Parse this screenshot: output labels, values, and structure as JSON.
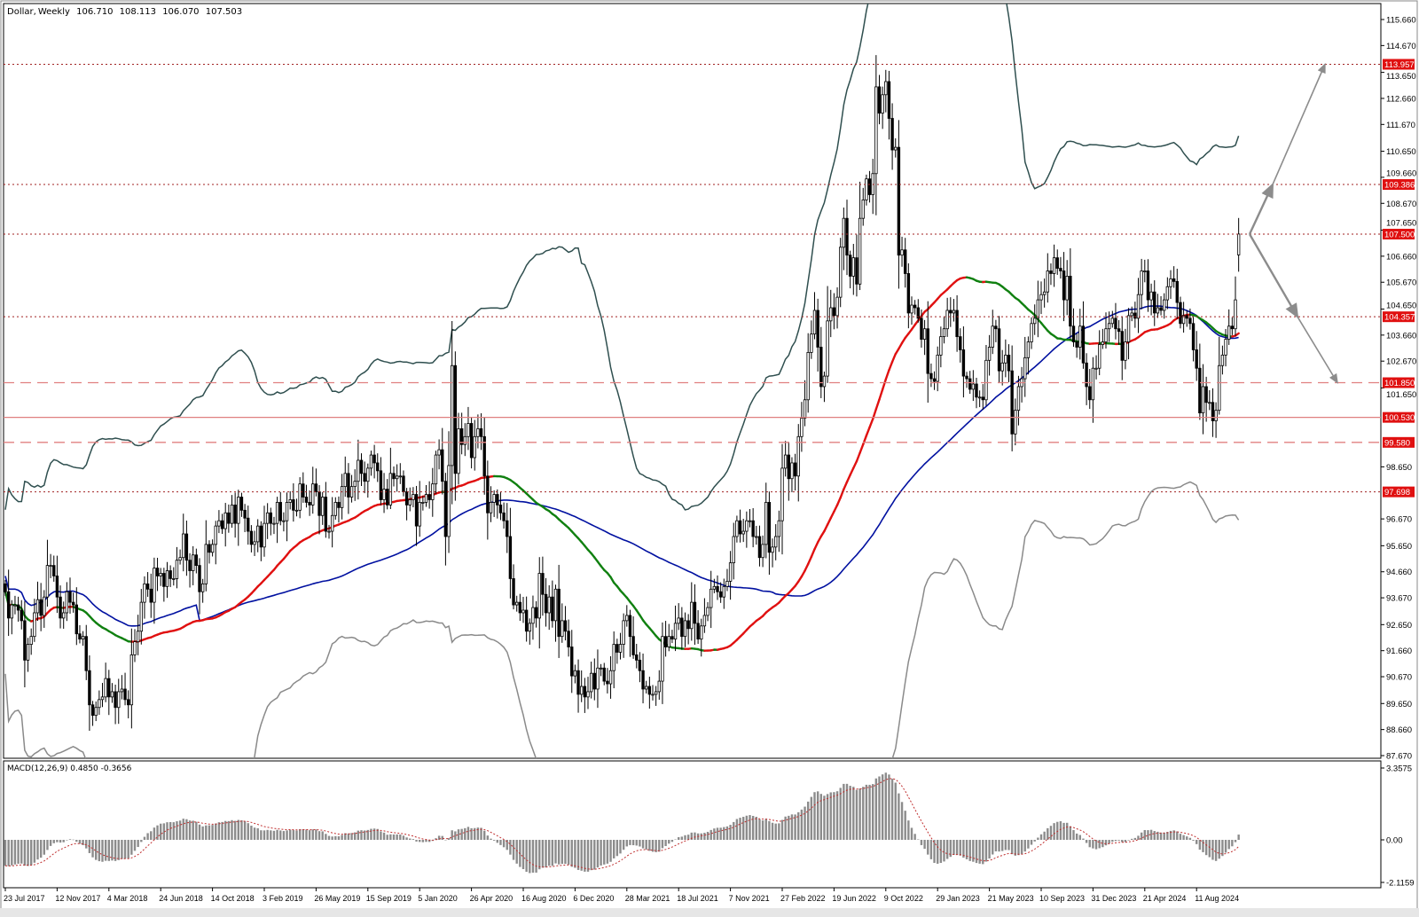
{
  "header": {
    "symbol": "Dollar",
    "timeframe": "Weekly",
    "open": "106.710",
    "high": "108.113",
    "low": "106.070",
    "close": "107.503"
  },
  "macd_label": {
    "name": "MACD(12,26,9)",
    "main": "0.4850",
    "signal": "-0.3656"
  },
  "colors": {
    "bull_body": "#ffffff",
    "bear_body": "#000000",
    "ma_rising": "#e01010",
    "ma_falling": "#108010",
    "ma_slow": "#0010a0",
    "band_upper": "#2f4f4f",
    "band_lower": "#8a8a8a",
    "level_label": "#e01010",
    "macd_hist": "#8c8c8c",
    "macd_signal": "#c03030",
    "arrows": "#8c8c8c"
  },
  "price_axis": [
    "115.660",
    "114.670",
    "113.650",
    "112.660",
    "111.670",
    "110.650",
    "109.660",
    "108.670",
    "107.650",
    "106.660",
    "105.670",
    "104.650",
    "103.660",
    "102.670",
    "101.650",
    "98.650",
    "96.670",
    "95.650",
    "94.660",
    "93.670",
    "92.650",
    "91.660",
    "90.670",
    "89.650",
    "88.660",
    "87.670"
  ],
  "macd_axis": [
    "3.3575",
    "0.00",
    "-2.1159"
  ],
  "levels": [
    {
      "price": "113.957",
      "style": "dotted"
    },
    {
      "price": "109.386",
      "style": "dotted"
    },
    {
      "price": "107.500",
      "style": "dotted"
    },
    {
      "price": "104.357",
      "style": "dotted"
    },
    {
      "price": "101.850",
      "style": "dashed"
    },
    {
      "price": "100.530",
      "style": "solid"
    },
    {
      "price": "99.580",
      "style": "dashed"
    },
    {
      "price": "97.698",
      "style": "dotted"
    }
  ],
  "projection_arrows": [
    {
      "from": "107.500",
      "via": "109.386",
      "to": "113.957"
    },
    {
      "from": "107.500",
      "via": "104.357",
      "to": "101.850"
    }
  ],
  "date_axis": [
    "23 Jul 2017",
    "12 Nov 2017",
    "4 Mar 2018",
    "24 Jun 2018",
    "14 Oct 2018",
    "3 Feb 2019",
    "26 May 2019",
    "15 Sep 2019",
    "5 Jan 2020",
    "26 Apr 2020",
    "16 Aug 2020",
    "6 Dec 2020",
    "28 Mar 2021",
    "18 Jul 2021",
    "7 Nov 2021",
    "27 Feb 2022",
    "19 Jun 2022",
    "9 Oct 2022",
    "29 Jan 2023",
    "21 May 2023",
    "10 Sep 2023",
    "31 Dec 2023",
    "21 Apr 2024",
    "11 Aug 2024"
  ],
  "chart_data": {
    "type": "candlestick",
    "timeframe": "weekly",
    "start_week": "23 Jul 2017",
    "ylim": [
      87.67,
      115.66
    ],
    "indicators": [
      "Bollinger Bands",
      "Moving Average (trend-colored)",
      "Moving Average (blue)",
      "MACD(12,26,9)"
    ],
    "last_bar": {
      "open": 106.71,
      "high": 108.113,
      "low": 106.07,
      "close": 107.503
    },
    "weekly_close": [
      93.9,
      92.9,
      93.4,
      93.4,
      93.2,
      92.8,
      91.3,
      91.9,
      92.2,
      93.1,
      93.6,
      93.0,
      93.7,
      94.9,
      94.9,
      94.5,
      93.7,
      92.9,
      93.1,
      93.9,
      93.5,
      93.4,
      92.3,
      92.1,
      92.2,
      90.9,
      89.6,
      89.2,
      89.5,
      89.8,
      89.9,
      90.6,
      89.9,
      90.1,
      89.5,
      90.1,
      90.2,
      89.8,
      89.6,
      91.5,
      92.0,
      92.4,
      93.5,
      94.2,
      94.0,
      93.5,
      94.8,
      94.5,
      94.6,
      94.1,
      94.7,
      94.4,
      94.4,
      95.1,
      95.2,
      96.1,
      95.1,
      94.7,
      95.3,
      94.9,
      93.9,
      94.2,
      95.7,
      95.4,
      95.7,
      96.4,
      96.6,
      96.3,
      96.9,
      96.5,
      97.2,
      96.5,
      97.5,
      97.0,
      96.7,
      96.2,
      95.7,
      95.8,
      96.4,
      95.6,
      96.5,
      96.9,
      96.5,
      96.5,
      97.3,
      96.6,
      96.6,
      97.3,
      97.4,
      97.0,
      97.0,
      98.0,
      97.5,
      97.3,
      97.2,
      98.0,
      97.7,
      96.8,
      97.5,
      96.2,
      96.2,
      96.8,
      97.3,
      97.1,
      97.9,
      98.4,
      97.5,
      97.9,
      98.1,
      98.9,
      98.4,
      98.1,
      98.6,
      99.1,
      98.8,
      98.5,
      97.4,
      97.8,
      97.2,
      98.4,
      98.2,
      98.3,
      98.3,
      97.7,
      97.2,
      97.4,
      97.6,
      96.4,
      97.3,
      97.3,
      97.6,
      97.4,
      98.0,
      99.1,
      99.3,
      98.1,
      96.0,
      98.7,
      102.5,
      98.4,
      100.1,
      99.5,
      99.8,
      100.3,
      99.0,
      99.8,
      100.1,
      99.8,
      98.3,
      96.9,
      97.3,
      97.6,
      97.2,
      96.9,
      96.6,
      96.0,
      94.4,
      93.4,
      93.5,
      93.1,
      93.2,
      92.4,
      92.7,
      93.3,
      92.9,
      94.6,
      93.8,
      93.1,
      93.7,
      92.8,
      94.0,
      92.2,
      92.8,
      92.4,
      91.8,
      90.7,
      90.9,
      90.0,
      90.3,
      89.9,
      90.1,
      90.8,
      90.2,
      91.0,
      91.0,
      90.5,
      90.4,
      90.9,
      91.9,
      91.6,
      91.9,
      92.8,
      93.0,
      92.2,
      91.5,
      91.3,
      90.9,
      90.2,
      90.3,
      90.0,
      90.0,
      90.1,
      90.5,
      92.2,
      91.8,
      92.2,
      92.1,
      92.7,
      92.9,
      92.2,
      92.8,
      92.5,
      93.5,
      92.7,
      92.1,
      92.6,
      93.0,
      93.3,
      94.0,
      94.1,
      93.9,
      93.7,
      94.1,
      94.3,
      95.0,
      96.0,
      96.6,
      96.1,
      96.2,
      96.6,
      96.6,
      96.0,
      96.0,
      95.2,
      95.7,
      97.3,
      95.4,
      95.6,
      96.0,
      96.6,
      98.6,
      99.1,
      98.2,
      98.8,
      98.3,
      99.8,
      100.5,
      101.2,
      103.0,
      103.7,
      104.6,
      103.2,
      101.7,
      102.1,
      104.2,
      104.7,
      104.4,
      105.1,
      107.0,
      108.1,
      106.7,
      105.9,
      106.6,
      105.6,
      108.1,
      108.8,
      109.6,
      109.0,
      109.8,
      113.1,
      112.1,
      112.8,
      113.3,
      111.9,
      110.7,
      110.8,
      106.7,
      106.9,
      106.0,
      104.5,
      104.8,
      104.7,
      104.3,
      103.5,
      103.9,
      102.2,
      102.0,
      101.9,
      102.9,
      103.6,
      103.9,
      104.6,
      104.5,
      104.6,
      103.6,
      103.1,
      102.1,
      102.0,
      101.6,
      101.8,
      101.3,
      101.3,
      101.2,
      102.7,
      103.2,
      104.0,
      103.9,
      102.3,
      102.6,
      102.9,
      102.3,
      99.9,
      100.8,
      101.7,
      102.0,
      102.8,
      103.4,
      104.1,
      104.3,
      105.0,
      105.2,
      105.3,
      106.1,
      106.0,
      106.6,
      106.2,
      106.1,
      105.0,
      105.9,
      104.0,
      103.4,
      103.2,
      104.0,
      102.6,
      101.7,
      101.2,
      102.4,
      102.4,
      103.3,
      103.4,
      103.9,
      104.1,
      104.3,
      103.9,
      103.8,
      102.7,
      103.4,
      104.4,
      104.5,
      104.3,
      105.2,
      106.1,
      106.1,
      105.0,
      105.3,
      104.5,
      104.7,
      104.6,
      105.0,
      105.5,
      105.8,
      105.7,
      104.9,
      104.1,
      104.4,
      104.3,
      104.1,
      103.1,
      102.4,
      100.7,
      101.7,
      101.1,
      101.1,
      100.4,
      100.8,
      102.5,
      102.9,
      103.5,
      104.0,
      103.9,
      105.0,
      107.503
    ]
  }
}
